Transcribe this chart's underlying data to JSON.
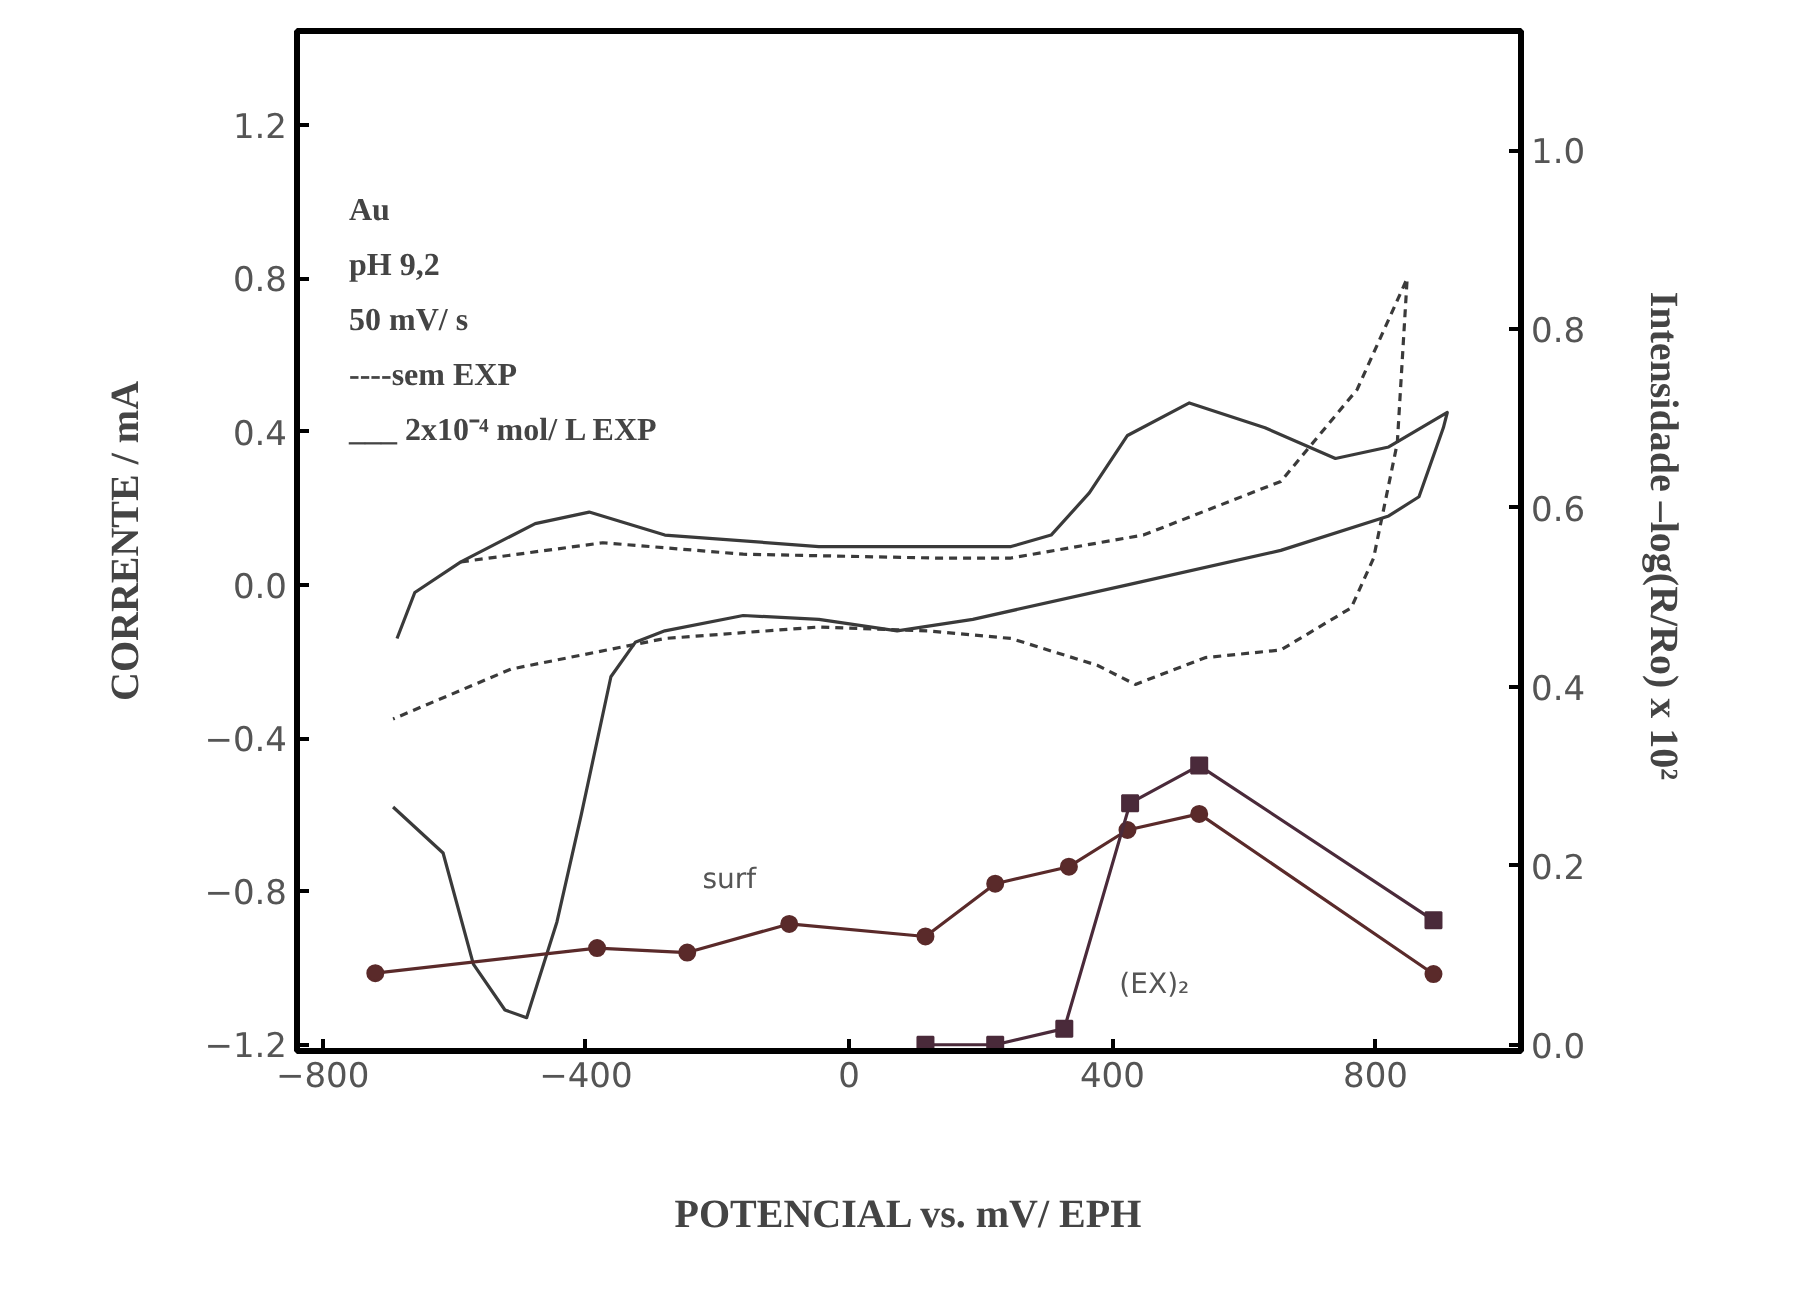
{
  "chart_data": {
    "type": "line",
    "xlabel": "POTENCIAL vs. mV/ EPH",
    "ylabel": "CORRENTE / mA",
    "y2label": "Intensidade  –log(R/Ro) x 10²",
    "xlim": [
      -839,
      1021
    ],
    "ylim": [
      -1.217,
      1.446
    ],
    "y2lim": [
      -0.007,
      1.133
    ],
    "xticks": [
      {
        "value": -800,
        "label": "−800"
      },
      {
        "value": -400,
        "label": "−400"
      },
      0,
      400,
      800
    ],
    "yticks": [
      {
        "value": -1.2,
        "label": "−1.2"
      },
      {
        "value": -0.8,
        "label": "−0.8"
      },
      {
        "value": -0.4,
        "label": "−0.4"
      },
      {
        "value": 0,
        "label": "0.0"
      },
      0.4,
      0.8,
      1.2
    ],
    "y2ticks": [
      {
        "value": 0,
        "label": "0.0"
      },
      0.2,
      0.4,
      0.6,
      0.8,
      {
        "value": 1,
        "label": "1.0"
      }
    ],
    "grid": false,
    "series": [
      {
        "color": "#3a3a3a",
        "line_style": "solid",
        "marker": "none",
        "axis": "y",
        "x": [
          -687,
          -660,
          -590,
          -477,
          -395,
          -280,
          -46,
          246,
          307,
          365,
          423,
          517,
          632,
          739,
          820,
          909,
          903,
          866,
          820,
          656,
          423,
          188,
          73,
          -46,
          -161,
          -280,
          -325,
          -362,
          -407,
          -444,
          -490,
          -523,
          -571,
          -617,
          -693
        ],
        "values": [
          -0.14,
          -0.02,
          0.06,
          0.16,
          0.19,
          0.13,
          0.1,
          0.1,
          0.13,
          0.24,
          0.39,
          0.475,
          0.41,
          0.33,
          0.36,
          0.45,
          0.41,
          0.23,
          0.18,
          0.09,
          0.0,
          -0.09,
          -0.12,
          -0.09,
          -0.08,
          -0.12,
          -0.15,
          -0.24,
          -0.6,
          -0.88,
          -1.13,
          -1.11,
          -0.99,
          -0.7,
          -0.58
        ]
      },
      {
        "color": "#3a3a3a",
        "line_style": "dashed",
        "marker": "none",
        "axis": "y",
        "x": [
          -590,
          -374,
          -161,
          131,
          246,
          447,
          656,
          772,
          848,
          833,
          797,
          763,
          656,
          541,
          435,
          377,
          246,
          119,
          -46,
          -280,
          -514,
          -693
        ],
        "values": [
          0.06,
          0.11,
          0.08,
          0.07,
          0.07,
          0.13,
          0.27,
          0.51,
          0.8,
          0.37,
          0.07,
          -0.06,
          -0.17,
          -0.19,
          -0.26,
          -0.21,
          -0.14,
          -0.12,
          -0.11,
          -0.14,
          -0.22,
          -0.35
        ]
      },
      {
        "name": "surf",
        "color": "#5a2a2a",
        "line_style": "solid",
        "marker": "circle",
        "axis": "y2",
        "x": [
          -720,
          -383,
          -246,
          -91,
          116,
          222,
          334,
          423,
          532,
          888
        ],
        "values": [
          0.08,
          0.108,
          0.103,
          0.135,
          0.121,
          0.18,
          0.199,
          0.24,
          0.258,
          0.079
        ]
      },
      {
        "name": "(EX)₂",
        "color": "#4a2a3a",
        "line_style": "solid",
        "marker": "square",
        "axis": "y2",
        "x": [
          116,
          222,
          327,
          427,
          532,
          888
        ],
        "values": [
          0.0,
          0.0,
          0.018,
          0.27,
          0.312,
          0.139
        ]
      }
    ],
    "annotations": [
      "Au",
      "pH 9,2",
      "50 mV/ s",
      "----sem EXP",
      "___ 2x10⁻⁴ mol/ L EXP"
    ]
  }
}
